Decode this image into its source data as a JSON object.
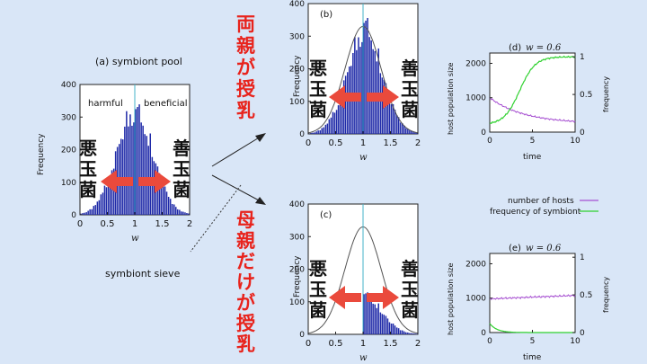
{
  "bg_color": "#d9e6f7",
  "bar_color": "#1f2aa8",
  "arrow_color": "#ea4a3c",
  "headline_color": "#e8231c",
  "center_line_color": "#45b3c8",
  "label_harmful_jp": [
    "悪",
    "玉",
    "菌"
  ],
  "label_beneficial_jp": [
    "善",
    "玉",
    "菌"
  ],
  "title_both_parents": [
    "両",
    "親",
    "が",
    "授",
    "乳"
  ],
  "title_mother_only": [
    "母",
    "親",
    "だ",
    "け",
    "が",
    "授",
    "乳"
  ],
  "panel_a": {
    "title": "(a) symbiont pool",
    "harmful": "harmful",
    "beneficial": "beneficial",
    "ylabel": "Frequency",
    "xlabel": "w",
    "xticks": [
      "0",
      "0.5",
      "1",
      "1.5",
      "2"
    ],
    "yticks": [
      "0",
      "100",
      "200",
      "300",
      "400"
    ]
  },
  "sieve_label": "symbiont sieve",
  "panel_b": {
    "label": "(b)",
    "ylabel": "Frequency",
    "xlabel": "w",
    "xticks": [
      "0",
      "0.5",
      "1",
      "1.5",
      "2"
    ],
    "yticks": [
      "0",
      "100",
      "200",
      "300",
      "400"
    ]
  },
  "panel_c": {
    "label": "(c)",
    "ylabel": "Frequency",
    "xlabel": "w",
    "xticks": [
      "0",
      "0.5",
      "1",
      "1.5",
      "2"
    ],
    "yticks": [
      "0",
      "100",
      "200",
      "300",
      "400"
    ]
  },
  "panel_d": {
    "label": "(d)",
    "w_label": "w = 0.6",
    "ylabel_left": "host population size",
    "ylabel_right": "frequency",
    "xlabel": "time",
    "xticks": [
      "0",
      "5",
      "10"
    ],
    "yticks_left": [
      "0",
      "1000",
      "2000"
    ],
    "yticks_right": [
      "0",
      "0.5",
      "1"
    ]
  },
  "panel_e": {
    "label": "(e)",
    "w_label": "w = 0.6",
    "ylabel_left": "host population size",
    "ylabel_right": "frequency",
    "xlabel": "time",
    "xticks": [
      "0",
      "5",
      "10"
    ],
    "yticks_left": [
      "0",
      "1000",
      "2000"
    ],
    "yticks_right": [
      "0",
      "0.5",
      "1"
    ]
  },
  "legend": {
    "hosts": "number of hosts",
    "symbiont": "frequency of symbiont",
    "hosts_color": "#a64fd1",
    "symbiont_color": "#2fd12f"
  }
}
